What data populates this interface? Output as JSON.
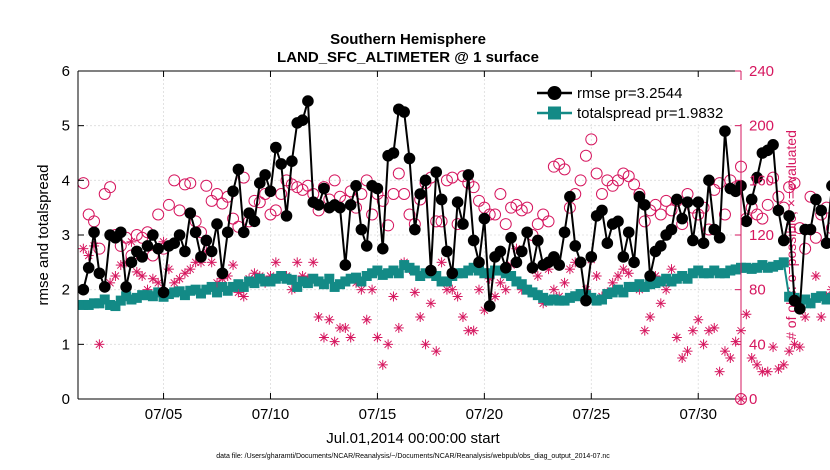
{
  "chart_data": {
    "type": "line",
    "title": [
      "Southern Hemisphere",
      "LAND_SFC_ALTIMETER @ 1 surface"
    ],
    "xlabel": "Jul.01,2014 00:00:00 start",
    "ylabel": "rmse and totalspread",
    "ylabel_right": "# of obs: o=possible; ×=evaluated",
    "footnote": "data file: /Users/gharamti/Documents/NCAR/Reanalysis/~/Documents/NCAR/Reanalysis/webpub/obs_diag_output_2014-07.nc",
    "xlim": [
      1,
      32
    ],
    "ylim": [
      0,
      6
    ],
    "ylim_right": [
      0,
      240
    ],
    "x_ticks": [
      {
        "x": 5,
        "label": "07/05"
      },
      {
        "x": 10,
        "label": "07/10"
      },
      {
        "x": 15,
        "label": "07/15"
      },
      {
        "x": 20,
        "label": "07/20"
      },
      {
        "x": 25,
        "label": "07/25"
      },
      {
        "x": 30,
        "label": "07/30"
      }
    ],
    "y_ticks": [
      "0",
      "1",
      "2",
      "3",
      "4",
      "5",
      "6"
    ],
    "y_ticks_right": [
      "0",
      "40",
      "80",
      "120",
      "160",
      "200",
      "240"
    ],
    "colors": {
      "rmse": "#000000",
      "spread": "#138a86",
      "obs": "#d6175f"
    },
    "legend": [
      {
        "name": "rmse pr=3.2544",
        "marker": "circle"
      },
      {
        "name": "totalspread pr=1.9832",
        "marker": "square"
      }
    ],
    "time_step_days": 0.25,
    "rmse": [
      2.0,
      2.4,
      3.05,
      2.3,
      2.05,
      3.0,
      2.95,
      3.05,
      2.05,
      2.5,
      2.7,
      2.6,
      2.8,
      3.0,
      2.75,
      1.95,
      2.8,
      2.85,
      3.0,
      2.7,
      3.4,
      3.05,
      2.6,
      2.9,
      2.7,
      3.2,
      2.3,
      3.05,
      3.8,
      4.2,
      3.05,
      3.4,
      3.25,
      3.95,
      4.1,
      3.8,
      4.6,
      4.3,
      3.35,
      4.35,
      5.05,
      5.1,
      5.45,
      3.6,
      3.55,
      3.85,
      3.5,
      3.55,
      3.5,
      2.45,
      3.55,
      3.9,
      3.1,
      2.8,
      3.9,
      3.85,
      2.75,
      4.45,
      4.5,
      5.3,
      5.25,
      4.4,
      3.1,
      3.75,
      4.0,
      2.35,
      4.15,
      3.65,
      2.7,
      2.3,
      3.6,
      3.2,
      4.1,
      2.9,
      2.5,
      3.3,
      1.7,
      2.6,
      2.7,
      2.4,
      2.95,
      2.5,
      2.7,
      3.05,
      2.4,
      2.9,
      2.45,
      2.5,
      2.6,
      2.45,
      3.05,
      3.7,
      2.8,
      2.5,
      1.8,
      2.6,
      3.35,
      3.45,
      2.85,
      3.2,
      3.25,
      2.6,
      3.05,
      2.5,
      3.7,
      3.55,
      2.25,
      2.7,
      2.8,
      3.0,
      3.1,
      3.65,
      3.3,
      3.6,
      2.9,
      3.6,
      2.85,
      4.0,
      3.1,
      2.95,
      4.9,
      3.85,
      3.8,
      3.9,
      3.25,
      3.65,
      4.05,
      4.5,
      4.55,
      4.65,
      3.45,
      2.9,
      3.35,
      1.8,
      1.65,
      3.1,
      3.1,
      3.65,
      3.45,
      2.85,
      3.9,
      3.15,
      3.8,
      3.8,
      2.8
    ],
    "totalspread": [
      1.72,
      1.72,
      1.75,
      1.75,
      1.82,
      1.72,
      1.7,
      1.8,
      1.88,
      1.82,
      1.85,
      1.9,
      1.9,
      1.88,
      1.95,
      1.87,
      1.92,
      1.95,
      1.97,
      1.9,
      1.98,
      2.0,
      1.93,
      2.0,
      2.05,
      1.95,
      2.05,
      1.98,
      2.05,
      2.1,
      2.05,
      2.15,
      2.12,
      2.2,
      2.15,
      2.15,
      2.2,
      2.25,
      2.2,
      2.18,
      2.05,
      2.15,
      2.12,
      2.2,
      2.15,
      2.1,
      2.2,
      2.05,
      2.1,
      2.15,
      2.2,
      2.22,
      2.15,
      2.25,
      2.3,
      2.35,
      2.27,
      2.3,
      2.35,
      2.3,
      2.45,
      2.4,
      2.35,
      2.25,
      2.3,
      2.3,
      2.25,
      2.15,
      2.15,
      2.25,
      2.3,
      2.3,
      2.35,
      2.4,
      2.35,
      2.3,
      2.3,
      2.35,
      2.35,
      2.3,
      2.25,
      2.15,
      2.1,
      2.0,
      1.95,
      1.9,
      1.85,
      1.8,
      1.82,
      1.8,
      1.8,
      1.85,
      1.88,
      1.92,
      1.9,
      1.85,
      1.8,
      1.82,
      1.92,
      1.95,
      2.0,
      1.95,
      2.05,
      2.05,
      2.1,
      2.05,
      2.1,
      2.12,
      2.15,
      2.2,
      2.15,
      2.2,
      2.25,
      2.2,
      2.3,
      2.35,
      2.3,
      2.3,
      2.35,
      2.3,
      2.3,
      2.35,
      2.37,
      2.4,
      2.4,
      2.38,
      2.4,
      2.45,
      2.4,
      2.42,
      2.45,
      2.5,
      1.87,
      1.85,
      1.8,
      1.82,
      1.75,
      1.85,
      1.88,
      1.82,
      1.85,
      1.85,
      1.82,
      1.8,
      1.85
    ],
    "obs_possible": [
      158,
      135,
      130,
      110,
      150,
      155,
      120,
      112,
      118,
      105,
      120,
      118,
      122,
      105,
      135,
      110,
      142,
      160,
      138,
      157,
      158,
      130,
      122,
      156,
      145,
      150,
      143,
      148,
      132,
      126,
      162,
      130,
      145,
      144,
      150,
      135,
      138,
      150,
      160,
      157,
      155,
      153,
      156,
      150,
      138,
      155,
      146,
      160,
      148,
      145,
      152,
      140,
      150,
      160,
      135,
      150,
      145,
      127,
      150,
      165,
      150,
      135,
      128,
      146,
      158,
      162,
      130,
      130,
      160,
      162,
      128,
      163,
      158,
      155,
      145,
      140,
      135,
      135,
      150,
      128,
      140,
      142,
      138,
      140,
      120,
      128,
      135,
      130,
      170,
      172,
      168,
      140,
      150,
      160,
      178,
      190,
      165,
      150,
      160,
      156,
      160,
      165,
      163,
      157,
      150,
      130,
      138,
      142,
      135,
      145,
      138,
      145,
      128,
      150,
      140,
      135,
      140,
      124,
      153,
      158,
      135,
      160,
      155,
      170,
      132,
      140,
      135,
      132,
      142,
      162,
      148,
      140,
      155,
      158,
      125,
      110,
      148,
      118,
      135,
      140,
      125,
      140,
      120,
      135,
      125
    ],
    "obs_evaluated": [
      110,
      105,
      112,
      40,
      82,
      85,
      90,
      98,
      100,
      115,
      93,
      90,
      80,
      88,
      85,
      115,
      95,
      85,
      88,
      92,
      95,
      100,
      100,
      108,
      100,
      85,
      88,
      90,
      98,
      78,
      75,
      88,
      92,
      90,
      85,
      90,
      100,
      90,
      90,
      80,
      100,
      90,
      88,
      100,
      60,
      45,
      58,
      42,
      52,
      52,
      45,
      85,
      80,
      58,
      80,
      45,
      25,
      40,
      75,
      52,
      100,
      95,
      78,
      60,
      40,
      70,
      35,
      100,
      80,
      80,
      75,
      60,
      50,
      50,
      80,
      65,
      88,
      75,
      85,
      80,
      98,
      110,
      80,
      80,
      95,
      90,
      70,
      95,
      80,
      75,
      85,
      95,
      100,
      100,
      80,
      102,
      90,
      75,
      78,
      85,
      90,
      95,
      92,
      100,
      80,
      50,
      60,
      90,
      70,
      80,
      95,
      45,
      30,
      35,
      50,
      58,
      40,
      50,
      52,
      20,
      35,
      30,
      42,
      50,
      62,
      30,
      25,
      20,
      20,
      38,
      22,
      25,
      35,
      40,
      38,
      60,
      70,
      90,
      60,
      75,
      80,
      35,
      60,
      75,
      80
    ]
  }
}
